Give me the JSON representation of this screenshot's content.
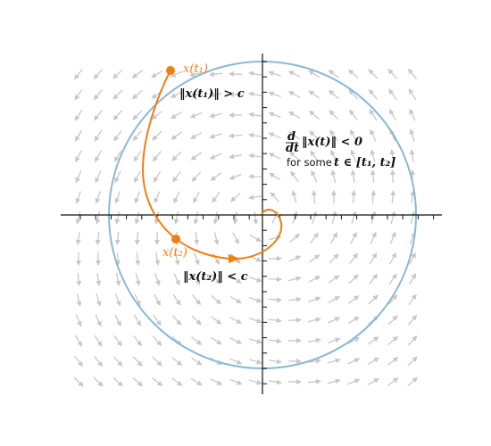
{
  "figure": {
    "annotations": {
      "point_t1": "x(t₁)",
      "point_t2": "x(t₂)",
      "norm_t1": "‖x(t₁)‖ > c",
      "norm_t2": "‖x(t₂)‖ < c",
      "derivative_num": "d",
      "derivative_den": "dt",
      "derivative_expr": "‖x(t)‖ < 0",
      "for_some_prefix": "for some",
      "for_some_math": "t ∈ [t₁, t₂]"
    },
    "colors": {
      "trajectory": "#f07f10",
      "circle": "#8bb8d4",
      "vector_field": "#c8c8c8",
      "axes": "#111111",
      "text": "#111111"
    }
  }
}
